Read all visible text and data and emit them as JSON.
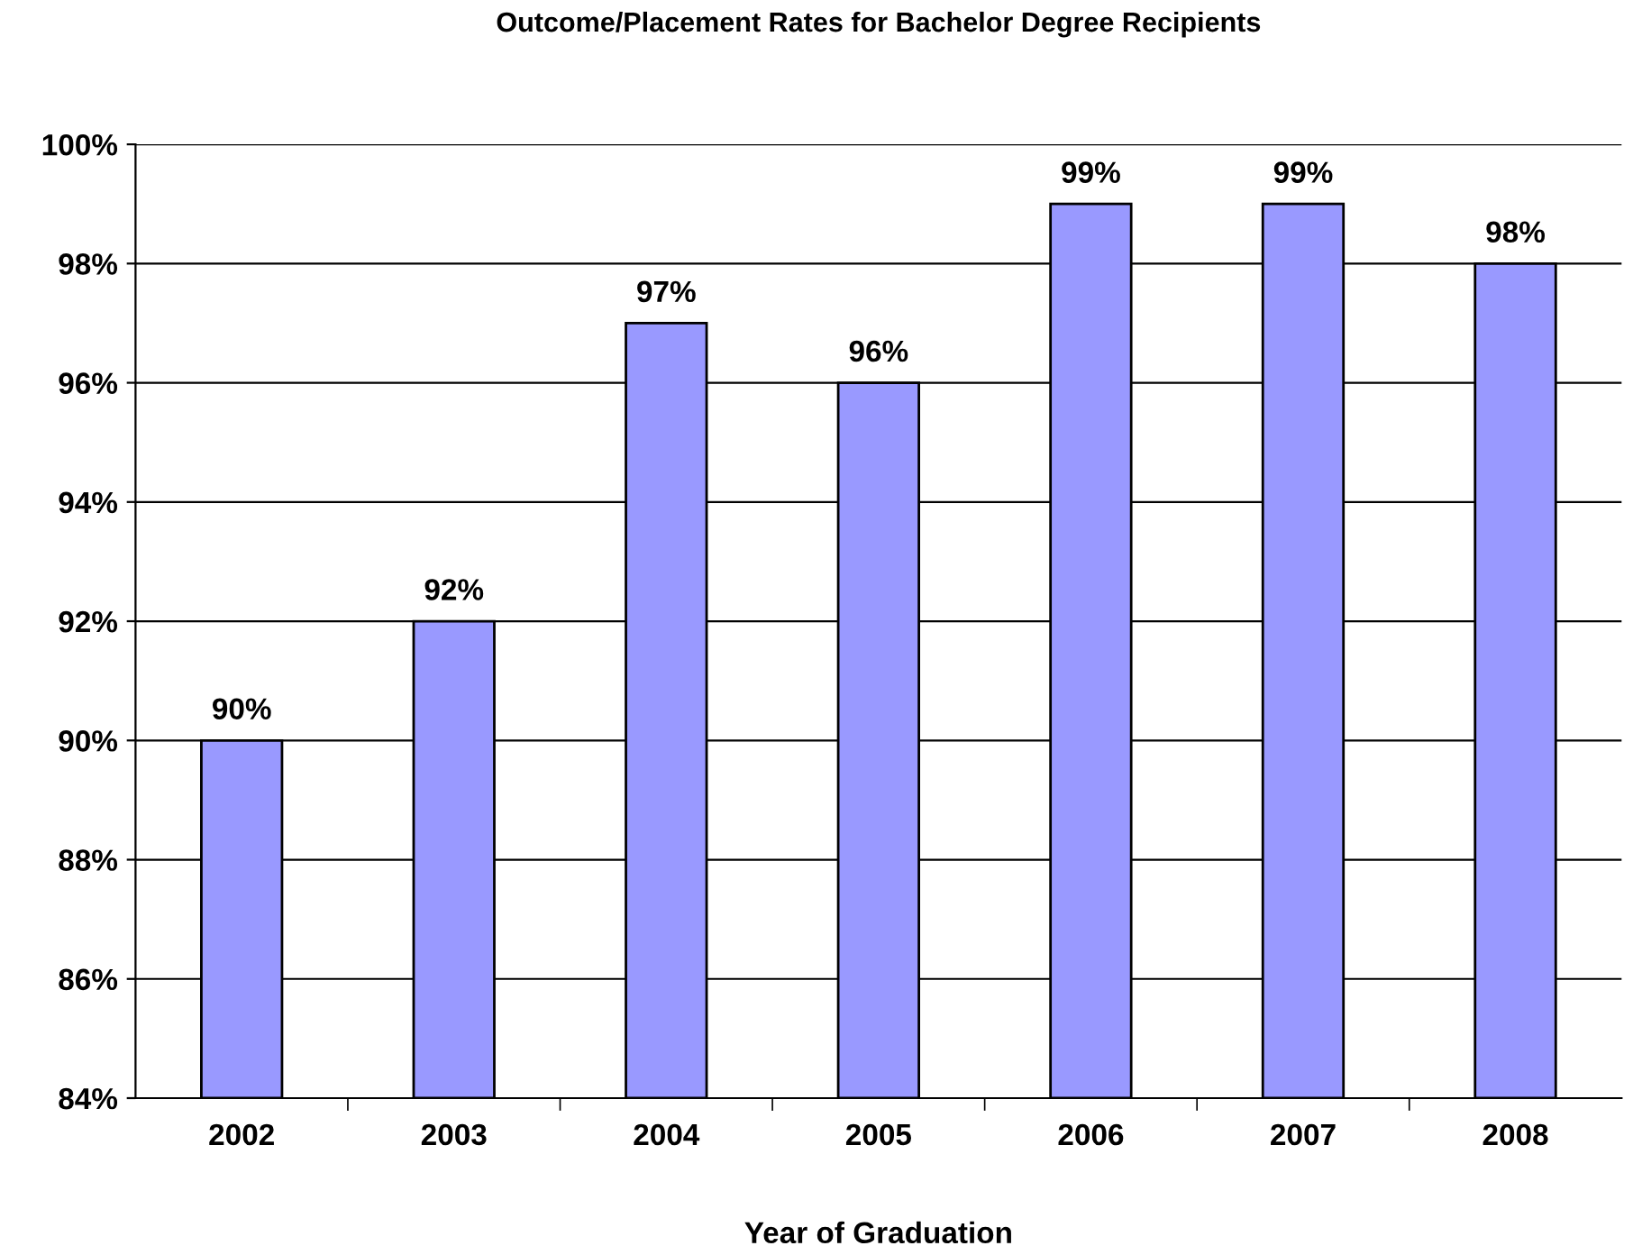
{
  "chart_data": {
    "type": "bar",
    "title": "Outcome/Placement Rates for Bachelor Degree Recipients",
    "xlabel": "Year of Graduation",
    "categories": [
      "2002",
      "2003",
      "2004",
      "2005",
      "2006",
      "2007",
      "2008"
    ],
    "values": [
      90,
      92,
      97,
      96,
      99,
      99,
      98
    ],
    "value_labels": [
      "90%",
      "92%",
      "97%",
      "96%",
      "99%",
      "99%",
      "98%"
    ],
    "color": "#9999ff",
    "ylim": [
      84,
      100
    ],
    "yticks": [
      {
        "value": 84,
        "label": "84%"
      },
      {
        "value": 86,
        "label": "86%"
      },
      {
        "value": 88,
        "label": "88%"
      },
      {
        "value": 90,
        "label": "90%"
      },
      {
        "value": 92,
        "label": "92%"
      },
      {
        "value": 94,
        "label": "94%"
      },
      {
        "value": 96,
        "label": "96%"
      },
      {
        "value": 98,
        "label": "98%"
      },
      {
        "value": 100,
        "label": "100%"
      }
    ],
    "grid": "y",
    "legend": false
  }
}
